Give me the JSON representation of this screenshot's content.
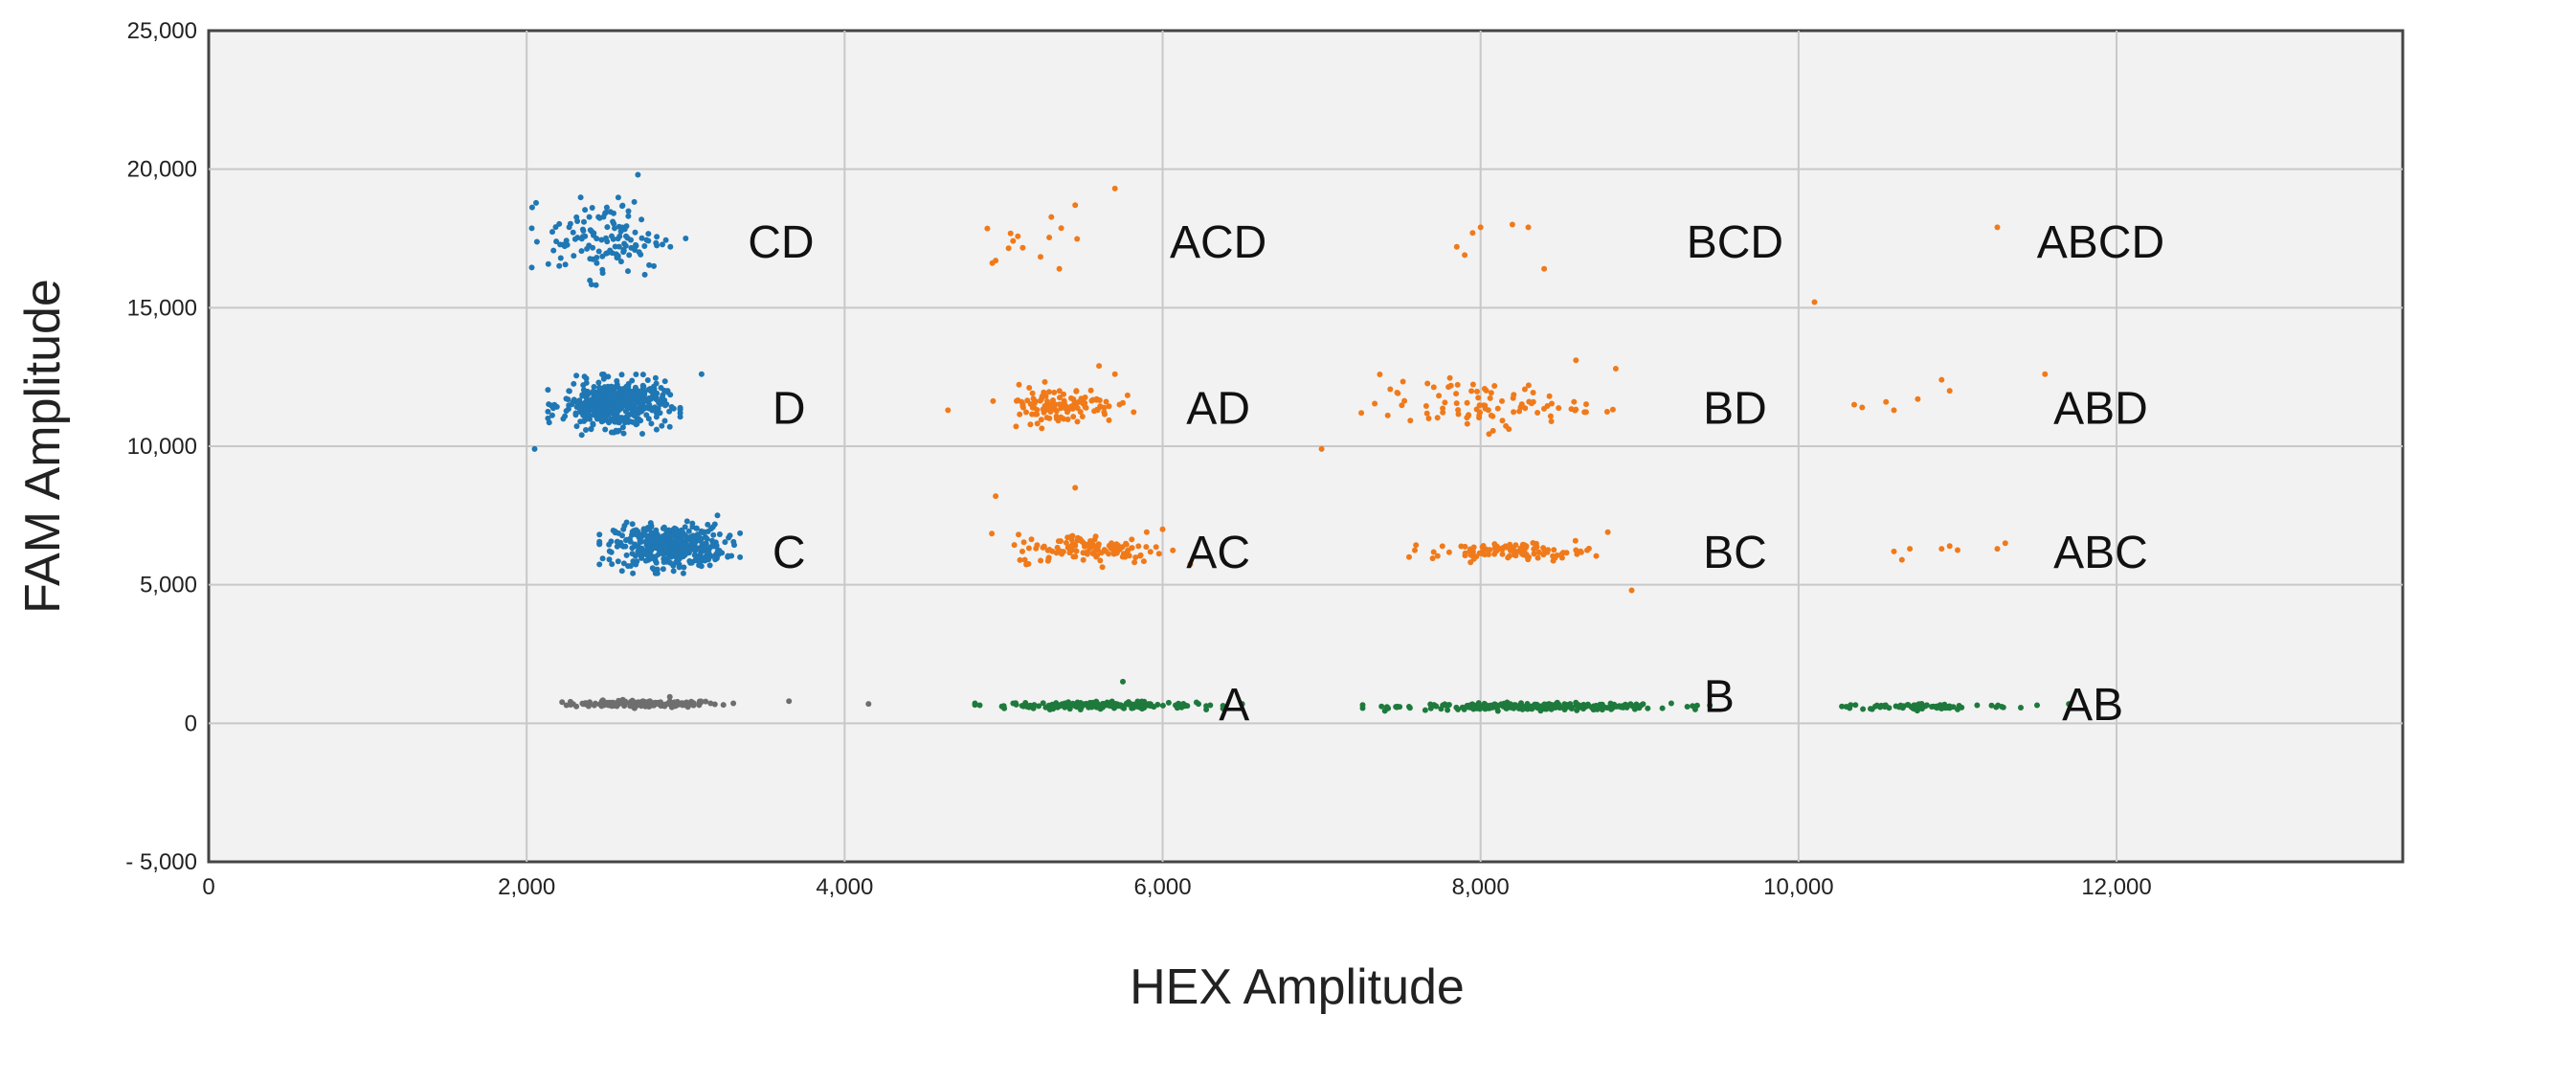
{
  "chart_data": {
    "type": "scatter",
    "title": "",
    "xlabel": "HEX Amplitude",
    "ylabel": "FAM Amplitude",
    "xlim": [
      0,
      13800
    ],
    "ylim": [
      -5000,
      25000
    ],
    "x_ticks": [
      0,
      2000,
      4000,
      6000,
      8000,
      10000,
      12000
    ],
    "x_tick_labels": [
      "0",
      "2,000",
      "4,000",
      "6,000",
      "8,000",
      "10,000",
      "12,000"
    ],
    "y_ticks": [
      -5000,
      0,
      5000,
      10000,
      15000,
      20000,
      25000
    ],
    "y_tick_labels": [
      "- 5,000",
      "0",
      "5,000",
      "10,000",
      "15,000",
      "20,000",
      "25,000"
    ],
    "grid": true,
    "colors": {
      "negative": "#6e6e6e",
      "single_positive": "#1e7a3c",
      "single_channel_cluster": "#1f77b4",
      "multi_positive": "#f07a1a",
      "plot_background": "#f2f2f2",
      "grid": "#c8c8c8",
      "axis": "#444444"
    },
    "clusters": [
      {
        "id": "neg",
        "label": "",
        "color_key": "negative",
        "cx": 2750,
        "cy": 700,
        "sx": 230,
        "sy": 60,
        "n": 160,
        "extra_points": [
          [
            3300,
            720
          ],
          [
            3650,
            800
          ],
          [
            4150,
            700
          ],
          [
            2900,
            950
          ]
        ]
      },
      {
        "id": "A",
        "label": "A",
        "label_pos": [
          6450,
          700
        ],
        "color_key": "single_positive",
        "cx": 5600,
        "cy": 650,
        "sx": 300,
        "sy": 60,
        "n": 180,
        "extra_points": [
          [
            4850,
            650
          ],
          [
            6300,
            650
          ],
          [
            6500,
            700
          ],
          [
            5750,
            1500
          ]
        ]
      },
      {
        "id": "B",
        "label": "B",
        "label_pos": [
          9500,
          1000
        ],
        "color_key": "single_positive",
        "cx": 8350,
        "cy": 600,
        "sx": 420,
        "sy": 60,
        "n": 260,
        "extra_points": [
          [
            7550,
            600
          ],
          [
            9300,
            600
          ]
        ]
      },
      {
        "id": "AB",
        "label": "AB",
        "label_pos": [
          11850,
          700
        ],
        "color_key": "single_positive",
        "cx": 10800,
        "cy": 600,
        "sx": 280,
        "sy": 55,
        "n": 80,
        "extra_points": [
          [
            10300,
            600
          ],
          [
            11500,
            650
          ],
          [
            11700,
            700
          ]
        ]
      },
      {
        "id": "C",
        "label": "C",
        "label_pos": [
          3650,
          6200
        ],
        "color_key": "single_channel_cluster",
        "cx": 2900,
        "cy": 6400,
        "sx": 170,
        "sy": 380,
        "n": 420,
        "extra_points": [
          [
            3200,
            7500
          ],
          [
            2600,
            5500
          ]
        ]
      },
      {
        "id": "D",
        "label": "D",
        "label_pos": [
          3650,
          11400
        ],
        "color_key": "single_channel_cluster",
        "cx": 2550,
        "cy": 11500,
        "sx": 160,
        "sy": 420,
        "n": 470,
        "extra_points": [
          [
            2050,
            9900
          ],
          [
            3100,
            12600
          ],
          [
            2900,
            10700
          ]
        ]
      },
      {
        "id": "CD",
        "label": "CD",
        "label_pos": [
          3600,
          17400
        ],
        "color_key": "single_channel_cluster",
        "cx": 2500,
        "cy": 17500,
        "sx": 180,
        "sy": 700,
        "n": 130,
        "extra_points": [
          [
            2700,
            19800
          ],
          [
            3000,
            17500
          ],
          [
            2800,
            16500
          ]
        ]
      },
      {
        "id": "AC",
        "label": "AC",
        "label_pos": [
          6350,
          6200
        ],
        "color_key": "multi_positive",
        "cx": 5550,
        "cy": 6300,
        "sx": 240,
        "sy": 260,
        "n": 130,
        "extra_points": [
          [
            4950,
            8200
          ],
          [
            5450,
            8500
          ],
          [
            5900,
            6900
          ],
          [
            6000,
            7000
          ]
        ]
      },
      {
        "id": "AD",
        "label": "AD",
        "label_pos": [
          6350,
          11400
        ],
        "color_key": "multi_positive",
        "cx": 5350,
        "cy": 11500,
        "sx": 180,
        "sy": 330,
        "n": 120,
        "extra_points": [
          [
            4650,
            11300
          ],
          [
            5600,
            12900
          ],
          [
            5700,
            12600
          ]
        ]
      },
      {
        "id": "ACD",
        "label": "ACD",
        "label_pos": [
          6350,
          17400
        ],
        "color_key": "multi_positive",
        "cx": 5150,
        "cy": 17500,
        "sx": 120,
        "sy": 500,
        "n": 12,
        "extra_points": [
          [
            5700,
            19300
          ],
          [
            5450,
            18700
          ],
          [
            5350,
            16400
          ],
          [
            4950,
            16700
          ]
        ]
      },
      {
        "id": "BC",
        "label": "BC",
        "label_pos": [
          9600,
          6200
        ],
        "color_key": "multi_positive",
        "cx": 8200,
        "cy": 6200,
        "sx": 250,
        "sy": 150,
        "n": 100,
        "extra_points": [
          [
            8800,
            6900
          ],
          [
            8950,
            4800
          ]
        ]
      },
      {
        "id": "BD",
        "label": "BD",
        "label_pos": [
          9600,
          11400
        ],
        "color_key": "multi_positive",
        "cx": 8000,
        "cy": 11500,
        "sx": 320,
        "sy": 420,
        "n": 90,
        "extra_points": [
          [
            7000,
            9900
          ],
          [
            7250,
            11200
          ],
          [
            8600,
            13100
          ],
          [
            8850,
            12800
          ]
        ]
      },
      {
        "id": "BCD",
        "label": "BCD",
        "label_pos": [
          9600,
          17400
        ],
        "color_key": "multi_positive",
        "cx": 8050,
        "cy": 17700,
        "sx": 100,
        "sy": 350,
        "n": 0,
        "extra_points": [
          [
            7850,
            17200
          ],
          [
            7950,
            17700
          ],
          [
            8000,
            17900
          ],
          [
            8200,
            18000
          ],
          [
            8300,
            17900
          ],
          [
            8400,
            16400
          ],
          [
            7900,
            16900
          ]
        ]
      },
      {
        "id": "ABC",
        "label": "ABC",
        "label_pos": [
          11900,
          6200
        ],
        "color_key": "multi_positive",
        "cx": 10750,
        "cy": 6200,
        "sx": 200,
        "sy": 150,
        "n": 0,
        "extra_points": [
          [
            10600,
            6200
          ],
          [
            10650,
            5900
          ],
          [
            10700,
            6300
          ],
          [
            10900,
            6300
          ],
          [
            11000,
            6250
          ],
          [
            11250,
            6300
          ],
          [
            11300,
            6500
          ],
          [
            10950,
            6400
          ]
        ]
      },
      {
        "id": "ABD",
        "label": "ABD",
        "label_pos": [
          11900,
          11400
        ],
        "color_key": "multi_positive",
        "cx": 10700,
        "cy": 11700,
        "sx": 200,
        "sy": 300,
        "n": 0,
        "extra_points": [
          [
            10350,
            11500
          ],
          [
            10400,
            11400
          ],
          [
            10550,
            11600
          ],
          [
            10600,
            11300
          ],
          [
            10750,
            11700
          ],
          [
            10900,
            12400
          ],
          [
            10950,
            12000
          ],
          [
            11550,
            12600
          ]
        ]
      },
      {
        "id": "ABCD",
        "label": "ABCD",
        "label_pos": [
          11900,
          17400
        ],
        "color_key": "multi_positive",
        "cx": 11250,
        "cy": 17900,
        "sx": 0,
        "sy": 0,
        "n": 0,
        "extra_points": [
          [
            11250,
            17900
          ],
          [
            10100,
            15200
          ]
        ]
      }
    ]
  }
}
